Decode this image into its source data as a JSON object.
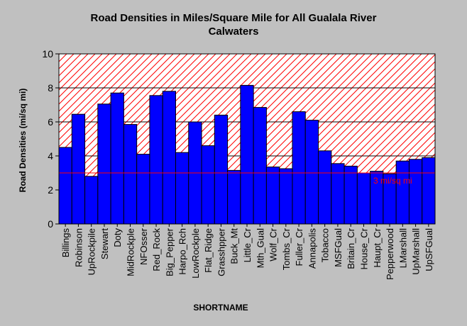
{
  "chart_data": {
    "type": "bar",
    "title": "Road Densities in Miles/Square Mile for All Gualala River Calwaters",
    "title_lines": [
      "Road Densities in Miles/Square Mile for All Gualala River",
      "Calwaters"
    ],
    "xlabel": "SHORTNAME",
    "ylabel": "Road Densities (mi/sq mi)",
    "ylim": [
      0,
      10
    ],
    "yticks": [
      0,
      2,
      4,
      6,
      8,
      10
    ],
    "grid": true,
    "legend": "none",
    "categories": [
      "Billings",
      "Robinson",
      "UpRockpile",
      "Stewart",
      "Doty",
      "MidRockple",
      "NFOsser",
      "Red_Rock",
      "Big_Pepper",
      "Harpo_Rch",
      "LowRockple",
      "Flat_Ridge",
      "Grasshpper",
      "Buck_Mt",
      "Little_Cr",
      "Mth_Gual",
      "Wolf_Cr",
      "Tombs_Cr",
      "Fuller_Cr",
      "Annapolis",
      "Tobacco",
      "MSFGual",
      "Britain_Cr",
      "House_Cr",
      "Haupt_Cr",
      "Pepperwood",
      "LMarshall",
      "UpMarshall",
      "UpSFGual"
    ],
    "values": [
      4.5,
      6.45,
      2.8,
      7.05,
      7.7,
      5.85,
      4.1,
      7.55,
      7.8,
      4.2,
      6.0,
      4.6,
      6.4,
      3.15,
      8.15,
      6.85,
      3.35,
      3.25,
      6.6,
      6.1,
      4.3,
      3.55,
      3.4,
      3.0,
      3.1,
      2.95,
      3.7,
      3.8,
      3.9
    ],
    "threshold": {
      "value": 3.0,
      "label": "3 mi/sq mi",
      "color": "#ff0000"
    },
    "colors": {
      "bar": "#0000ff",
      "hatch": "#ff0000",
      "background": "#c0c0c0",
      "plot_background": "#ffffff",
      "grid": "#000000"
    }
  }
}
